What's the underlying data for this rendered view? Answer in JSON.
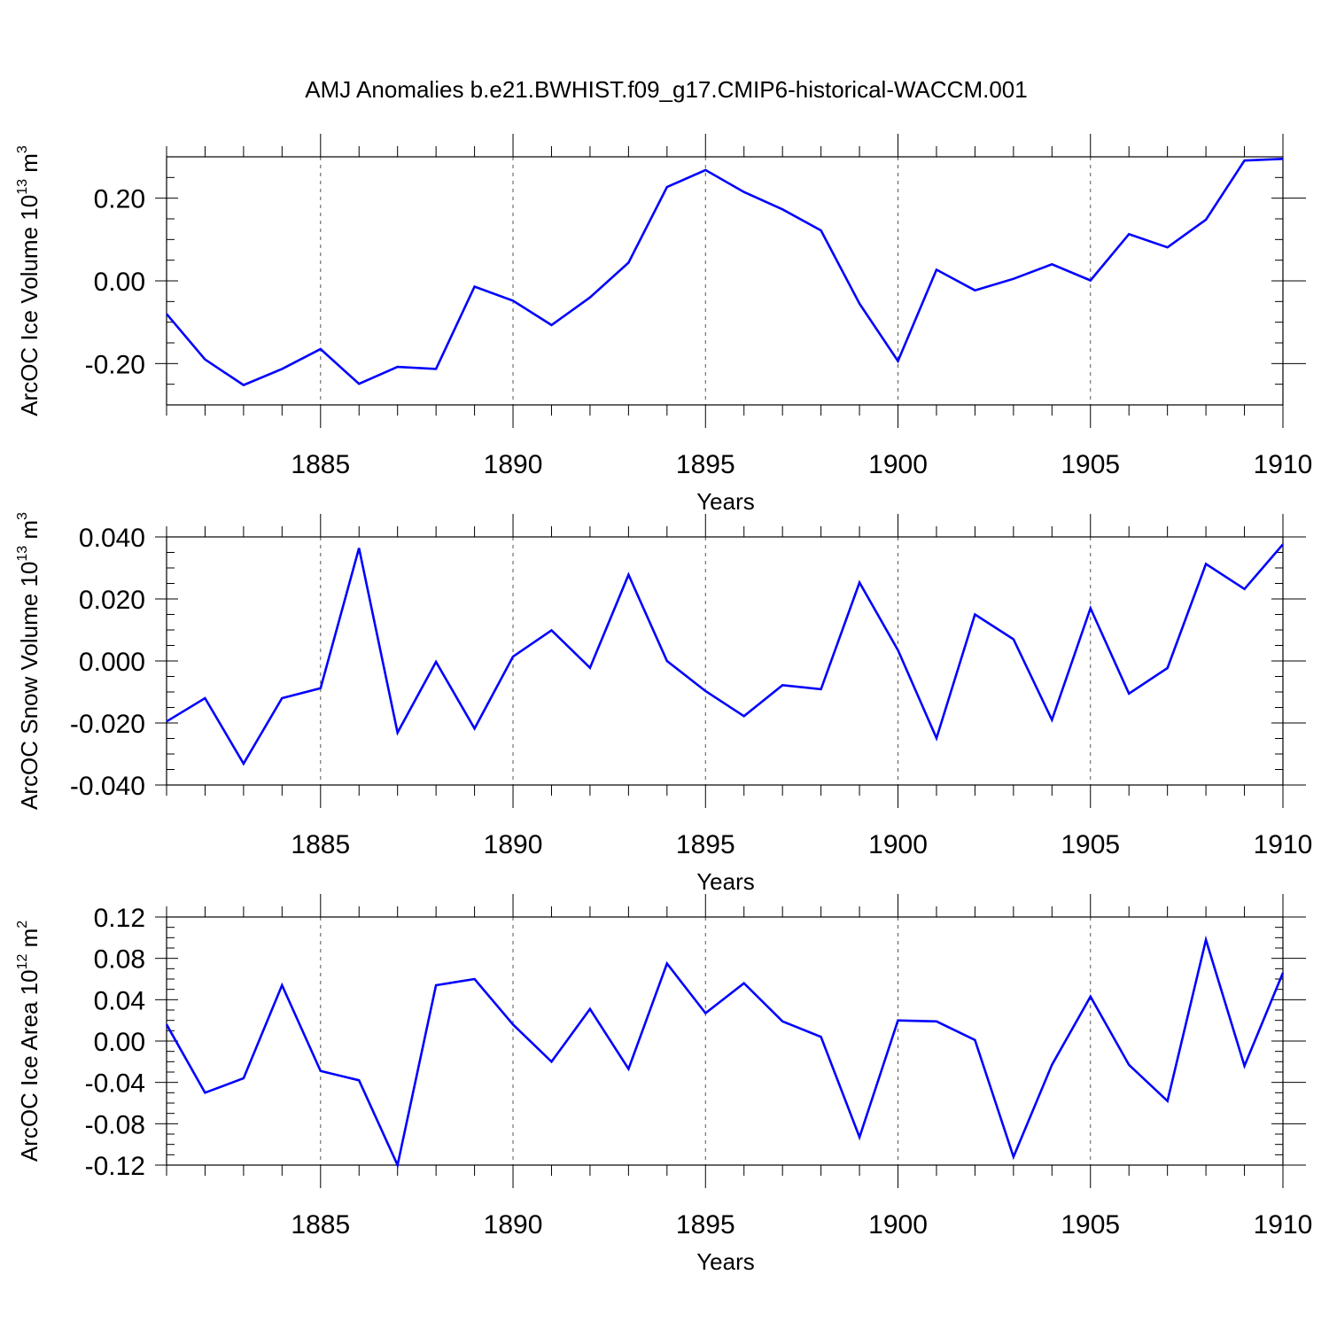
{
  "figure": {
    "title": "AMJ Anomalies b.e21.BWHIST.f09_g17.CMIP6-historical-WACCM.001"
  },
  "colors": {
    "line": "#0000ff",
    "axis": "#000000",
    "grid": "#555555"
  },
  "chart_data": [
    {
      "type": "line",
      "ylabel": "ArcOC Ice Volume 10",
      "ylabel_exp": "13",
      "ylabel_unit": " m",
      "ylabel_unit_exp": "3",
      "xlabel": "Years",
      "xlim": [
        1881,
        1910
      ],
      "ylim": [
        -0.3,
        0.3
      ],
      "xticks": [
        1885,
        1890,
        1895,
        1900,
        1905,
        1910
      ],
      "xtick_labels": [
        "1885",
        "1890",
        "1895",
        "1900",
        "1905",
        "1910"
      ],
      "yticks": [
        -0.2,
        0.0,
        0.2
      ],
      "ytick_labels": [
        "-0.20",
        "0.00",
        "0.20"
      ],
      "yminor": 0.05,
      "grid": "vertical-dashed",
      "x": [
        1881,
        1882,
        1883,
        1884,
        1885,
        1886,
        1887,
        1888,
        1889,
        1890,
        1891,
        1892,
        1893,
        1894,
        1895,
        1896,
        1897,
        1898,
        1899,
        1900,
        1901,
        1902,
        1903,
        1904,
        1905,
        1906,
        1907,
        1908,
        1909,
        1910
      ],
      "series": [
        {
          "values": [
            -0.08,
            -0.19,
            -0.252,
            -0.213,
            -0.165,
            -0.249,
            -0.208,
            -0.213,
            -0.014,
            -0.048,
            -0.107,
            -0.04,
            0.044,
            0.227,
            0.268,
            0.215,
            0.173,
            0.122,
            -0.055,
            -0.194,
            0.027,
            -0.023,
            0.005,
            0.04,
            0.001,
            0.113,
            0.081,
            0.148,
            0.291,
            0.295
          ]
        }
      ]
    },
    {
      "type": "line",
      "ylabel": "ArcOC Snow Volume 10",
      "ylabel_exp": "13",
      "ylabel_unit": " m",
      "ylabel_unit_exp": "3",
      "xlabel": "Years",
      "xlim": [
        1881,
        1910
      ],
      "ylim": [
        -0.04,
        0.04
      ],
      "xticks": [
        1885,
        1890,
        1895,
        1900,
        1905,
        1910
      ],
      "xtick_labels": [
        "1885",
        "1890",
        "1895",
        "1900",
        "1905",
        "1910"
      ],
      "yticks": [
        -0.04,
        -0.02,
        0.0,
        0.02,
        0.04
      ],
      "ytick_labels": [
        "-0.040",
        "-0.020",
        "0.000",
        "0.020",
        "0.040"
      ],
      "yminor": 0.005,
      "grid": "vertical-dashed",
      "x": [
        1881,
        1882,
        1883,
        1884,
        1885,
        1886,
        1887,
        1888,
        1889,
        1890,
        1891,
        1892,
        1893,
        1894,
        1895,
        1896,
        1897,
        1898,
        1899,
        1900,
        1901,
        1902,
        1903,
        1904,
        1905,
        1906,
        1907,
        1908,
        1909,
        1910
      ],
      "series": [
        {
          "values": [
            -0.0195,
            -0.012,
            -0.0331,
            -0.012,
            -0.0088,
            0.0364,
            -0.0231,
            -0.0003,
            -0.0218,
            0.0014,
            0.0099,
            -0.0022,
            0.0278,
            0.0,
            -0.0097,
            -0.0178,
            -0.0078,
            -0.0091,
            0.0253,
            0.0035,
            -0.0249,
            0.015,
            0.007,
            -0.019,
            0.017,
            -0.0105,
            -0.0023,
            0.0313,
            0.0232,
            0.0376
          ]
        }
      ]
    },
    {
      "type": "line",
      "ylabel": "ArcOC Ice Area 10",
      "ylabel_exp": "12",
      "ylabel_unit": " m",
      "ylabel_unit_exp": "2",
      "xlabel": "Years",
      "xlim": [
        1881,
        1910
      ],
      "ylim": [
        -0.12,
        0.12
      ],
      "xticks": [
        1885,
        1890,
        1895,
        1900,
        1905,
        1910
      ],
      "xtick_labels": [
        "1885",
        "1890",
        "1895",
        "1900",
        "1905",
        "1910"
      ],
      "yticks": [
        -0.12,
        -0.08,
        -0.04,
        0.0,
        0.04,
        0.08,
        0.12
      ],
      "ytick_labels": [
        "-0.12",
        "-0.08",
        "-0.04",
        "0.00",
        "0.04",
        "0.08",
        "0.12"
      ],
      "yminor": 0.01,
      "grid": "vertical-dashed",
      "x": [
        1881,
        1882,
        1883,
        1884,
        1885,
        1886,
        1887,
        1888,
        1889,
        1890,
        1891,
        1892,
        1893,
        1894,
        1895,
        1896,
        1897,
        1898,
        1899,
        1900,
        1901,
        1902,
        1903,
        1904,
        1905,
        1906,
        1907,
        1908,
        1909,
        1910
      ],
      "series": [
        {
          "values": [
            0.016,
            -0.05,
            -0.036,
            0.054,
            -0.029,
            -0.038,
            -0.12,
            0.054,
            0.06,
            0.016,
            -0.02,
            0.031,
            -0.027,
            0.075,
            0.027,
            0.056,
            0.019,
            0.004,
            -0.093,
            0.02,
            0.019,
            0.001,
            -0.112,
            -0.023,
            0.043,
            -0.023,
            -0.058,
            0.098,
            -0.024,
            0.066
          ]
        }
      ]
    }
  ]
}
